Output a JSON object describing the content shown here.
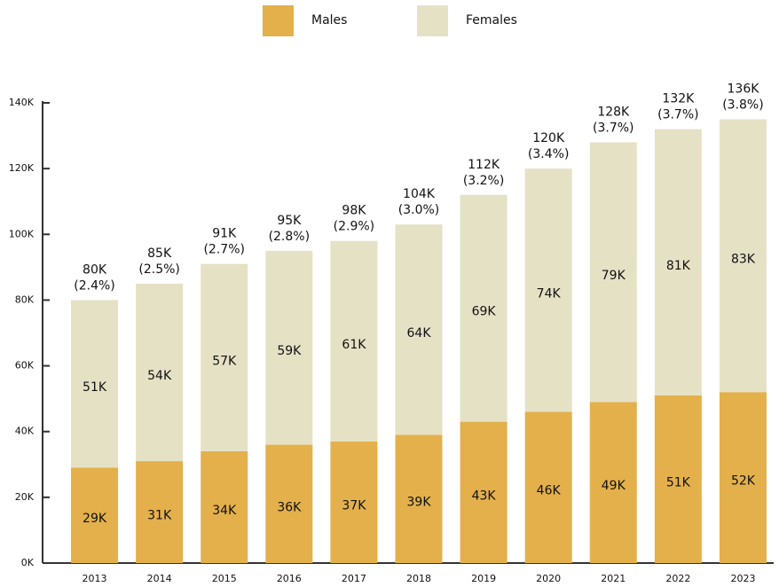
{
  "chart_data": {
    "type": "stacked_bar",
    "categories": [
      "2013",
      "2014",
      "2015",
      "2016",
      "2017",
      "2018",
      "2019",
      "2020",
      "2021",
      "2022",
      "2023"
    ],
    "series": [
      {
        "name": "Males",
        "color": "#e3b04b",
        "values": [
          29000,
          31000,
          34000,
          36000,
          37000,
          39000,
          43000,
          46000,
          49000,
          51000,
          52000
        ],
        "value_labels": [
          "29K",
          "31K",
          "34K",
          "36K",
          "37K",
          "39K",
          "43K",
          "46K",
          "49K",
          "51K",
          "52K"
        ]
      },
      {
        "name": "Females",
        "color": "#e5e1c5",
        "values": [
          51000,
          54000,
          57000,
          59000,
          61000,
          64000,
          69000,
          74000,
          79000,
          81000,
          83000
        ],
        "value_labels": [
          "51K",
          "54K",
          "57K",
          "59K",
          "61K",
          "64K",
          "69K",
          "74K",
          "79K",
          "81K",
          "83K"
        ]
      }
    ],
    "total_labels": [
      "80K",
      "85K",
      "91K",
      "95K",
      "98K",
      "104K",
      "112K",
      "120K",
      "128K",
      "132K",
      "136K"
    ],
    "share_labels": [
      "(2.4%)",
      "(2.5%)",
      "(2.7%)",
      "(2.8%)",
      "(2.9%)",
      "(3.0%)",
      "(3.2%)",
      "(3.4%)",
      "(3.7%)",
      "(3.7%)",
      "(3.8%)"
    ],
    "ylim": [
      0,
      140000
    ],
    "yticks": [
      {
        "value": 0,
        "label": "0K"
      },
      {
        "value": 20000,
        "label": "20K"
      },
      {
        "value": 40000,
        "label": "40K"
      },
      {
        "value": 60000,
        "label": "60K"
      },
      {
        "value": 80000,
        "label": "80K"
      },
      {
        "value": 100000,
        "label": "100K"
      },
      {
        "value": 120000,
        "label": "120K"
      },
      {
        "value": 140000,
        "label": "140K"
      }
    ],
    "legend": "top"
  }
}
